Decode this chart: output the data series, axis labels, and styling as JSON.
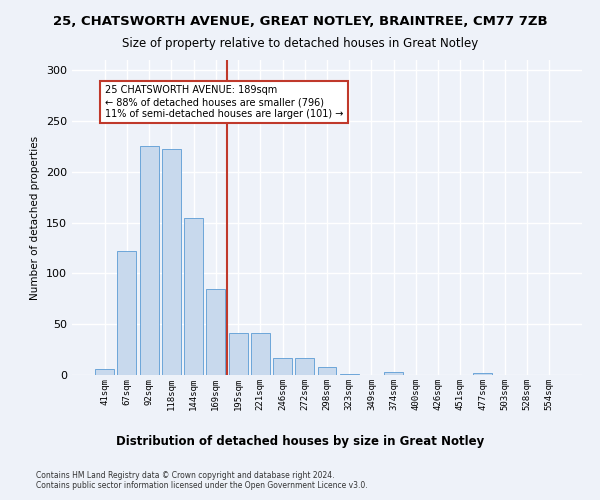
{
  "title": "25, CHATSWORTH AVENUE, GREAT NOTLEY, BRAINTREE, CM77 7ZB",
  "subtitle": "Size of property relative to detached houses in Great Notley",
  "xlabel": "Distribution of detached houses by size in Great Notley",
  "ylabel": "Number of detached properties",
  "categories": [
    "41sqm",
    "67sqm",
    "92sqm",
    "118sqm",
    "144sqm",
    "169sqm",
    "195sqm",
    "221sqm",
    "246sqm",
    "272sqm",
    "298sqm",
    "323sqm",
    "349sqm",
    "374sqm",
    "400sqm",
    "426sqm",
    "451sqm",
    "477sqm",
    "503sqm",
    "528sqm",
    "554sqm"
  ],
  "values": [
    6,
    122,
    225,
    222,
    155,
    85,
    41,
    41,
    17,
    17,
    8,
    1,
    0,
    3,
    0,
    0,
    0,
    2,
    0,
    0,
    0
  ],
  "bar_color": "#c8d9ed",
  "bar_edge_color": "#5b9bd5",
  "vline_x_idx": 5.5,
  "vline_color": "#c0392b",
  "annotation_line1": "25 CHATSWORTH AVENUE: 189sqm",
  "annotation_line2": "← 88% of detached houses are smaller (796)",
  "annotation_line3": "11% of semi-detached houses are larger (101) →",
  "annotation_box_color": "white",
  "annotation_box_edge_color": "#c0392b",
  "ylim": [
    0,
    310
  ],
  "yticks": [
    0,
    50,
    100,
    150,
    200,
    250,
    300
  ],
  "footnote": "Contains HM Land Registry data © Crown copyright and database right 2024.\nContains public sector information licensed under the Open Government Licence v3.0.",
  "bg_color": "#eef2f9",
  "grid_color": "#ffffff",
  "title_fontsize": 9.5,
  "subtitle_fontsize": 8.5,
  "bar_width": 0.85
}
